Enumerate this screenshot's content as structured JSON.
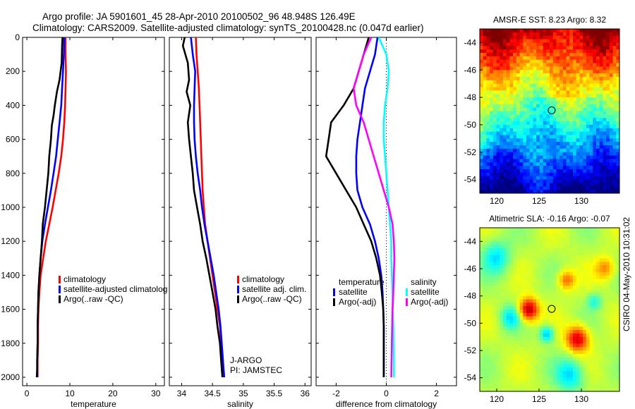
{
  "title_line1": "Argo profile: JA 5901601_45 28-Apr-2010 20100502_96 48.948S 126.49E",
  "title_line2": "Climatology: CARS2009. Satellite-adjusted climatology: synTS_20100428.nc (0.047d earlier)",
  "side_label": "CSIRO 04-May-2010 10:31:02",
  "colors": {
    "climatology": "#ff0000",
    "satellite": "#0000ff",
    "argo": "#000000",
    "salinity_satellite": "#00ffff",
    "salinity_argo": "#ff00ff"
  },
  "chart_data": [
    {
      "id": "temperature",
      "type": "line",
      "xlabel": "temperature",
      "xlim": [
        -1,
        32
      ],
      "xticks": [
        0,
        10,
        20,
        30
      ],
      "ylim": [
        2050,
        0
      ],
      "yticks": [
        0,
        200,
        400,
        600,
        800,
        1000,
        1200,
        1400,
        1600,
        1800,
        2000
      ],
      "legend": [
        "climatology",
        "satellite-adjusted climatolog",
        "Argo(..raw -QC)"
      ],
      "series": [
        {
          "name": "climatology",
          "color": "#ff0000",
          "x": [
            9.0,
            9.0,
            9.1,
            9.0,
            8.9,
            8.7,
            8.4,
            8.0,
            7.4,
            6.7,
            6.0,
            5.2,
            4.4,
            3.8,
            3.2,
            2.9,
            2.7,
            2.6,
            2.6,
            2.5,
            2.5
          ],
          "y": [
            0,
            100,
            200,
            300,
            400,
            500,
            600,
            700,
            800,
            900,
            1000,
            1100,
            1200,
            1300,
            1400,
            1500,
            1600,
            1700,
            1800,
            1900,
            2000
          ]
        },
        {
          "name": "satellite-adjusted climatolog",
          "color": "#0000ff",
          "x": [
            8.7,
            8.6,
            8.4,
            8.2,
            8.0,
            7.6,
            7.2,
            6.8,
            6.2,
            5.6,
            4.9,
            4.2,
            3.6,
            3.2,
            2.9,
            2.7,
            2.6,
            2.5,
            2.5,
            2.4,
            2.4
          ],
          "y": [
            0,
            100,
            200,
            300,
            400,
            500,
            600,
            700,
            800,
            900,
            1000,
            1100,
            1200,
            1300,
            1400,
            1500,
            1600,
            1700,
            1800,
            1900,
            2000
          ]
        },
        {
          "name": "Argo(..raw -QC)",
          "color": "#000000",
          "x": [
            8.3,
            8.2,
            8.1,
            7.6,
            7.0,
            6.5,
            6.2,
            5.8,
            5.6,
            5.2,
            5.0,
            4.6,
            4.2,
            3.7,
            3.5,
            3.2,
            2.9,
            2.7,
            2.6,
            2.5,
            2.5,
            2.4,
            2.4,
            2.3
          ],
          "y": [
            0,
            50,
            150,
            250,
            320,
            400,
            460,
            520,
            600,
            700,
            800,
            900,
            1000,
            1100,
            1200,
            1300,
            1400,
            1500,
            1600,
            1700,
            1800,
            1900,
            1950,
            2000
          ]
        }
      ]
    },
    {
      "id": "salinity",
      "type": "line",
      "xlabel": "salinity",
      "xlim": [
        33.8,
        36.1
      ],
      "xticks": [
        34,
        34.5,
        35,
        35.5,
        36
      ],
      "ylim": [
        2050,
        0
      ],
      "legend": [
        "climatology",
        "satellite adj. clim.",
        "Argo(..raw -QC)"
      ],
      "annotation": [
        "J-ARGO",
        "PI: JAMSTEC"
      ],
      "series": [
        {
          "name": "climatology",
          "color": "#ff0000",
          "x": [
            34.23,
            34.24,
            34.26,
            34.28,
            34.29,
            34.3,
            34.31,
            34.32,
            34.33,
            34.34,
            34.36,
            34.38,
            34.42,
            34.46,
            34.5,
            34.54,
            34.58,
            34.62,
            34.64,
            34.66,
            34.67
          ],
          "y": [
            0,
            100,
            200,
            300,
            400,
            500,
            600,
            700,
            800,
            900,
            1000,
            1100,
            1200,
            1300,
            1400,
            1500,
            1600,
            1700,
            1800,
            1900,
            2000
          ]
        },
        {
          "name": "satellite adj. clim.",
          "color": "#0000ff",
          "x": [
            34.15,
            34.18,
            34.22,
            34.21,
            34.2,
            34.2,
            34.21,
            34.23,
            34.26,
            34.3,
            34.33,
            34.37,
            34.42,
            34.47,
            34.52,
            34.56,
            34.6,
            34.63,
            34.65,
            34.67,
            34.69
          ],
          "y": [
            0,
            100,
            200,
            300,
            400,
            500,
            600,
            700,
            800,
            900,
            1000,
            1100,
            1200,
            1300,
            1400,
            1500,
            1600,
            1700,
            1800,
            1900,
            2000
          ]
        },
        {
          "name": "Argo(..raw -QC)",
          "color": "#000000",
          "x": [
            34.05,
            34.02,
            34.1,
            34.12,
            34.08,
            34.14,
            34.1,
            34.12,
            34.15,
            34.18,
            34.2,
            34.25,
            34.3,
            34.34,
            34.4,
            34.45,
            34.5,
            34.55,
            34.58,
            34.62,
            34.64,
            34.66
          ],
          "y": [
            0,
            50,
            150,
            250,
            320,
            400,
            500,
            600,
            700,
            800,
            900,
            1000,
            1100,
            1200,
            1300,
            1400,
            1500,
            1600,
            1700,
            1800,
            1900,
            2000
          ]
        }
      ]
    },
    {
      "id": "difference",
      "type": "line",
      "xlabel": "difference from climatology",
      "xlim": [
        -2.8,
        2.8
      ],
      "xticks": [
        -2,
        0,
        2
      ],
      "ylim": [
        2050,
        0
      ],
      "legend_left": {
        "title": "temperature",
        "items": [
          "satellite",
          "Argo(-adj)"
        ]
      },
      "legend_right": {
        "title": "salinity",
        "items": [
          "satellite",
          "Argo(-adj)"
        ]
      },
      "zero_line": 0,
      "series": [
        {
          "name": "temperature satellite",
          "color": "#0000ff",
          "x": [
            -0.35,
            -0.45,
            -0.65,
            -0.85,
            -0.95,
            -1.05,
            -1.15,
            -1.2,
            -1.2,
            -1.15,
            -0.95,
            -0.65,
            -0.45,
            -0.3,
            -0.2,
            -0.15,
            -0.12,
            -0.1,
            -0.1,
            -0.1,
            -0.1
          ],
          "y": [
            0,
            100,
            200,
            300,
            400,
            500,
            600,
            700,
            800,
            900,
            1000,
            1100,
            1200,
            1300,
            1400,
            1500,
            1600,
            1700,
            1800,
            1900,
            2000
          ]
        },
        {
          "name": "temperature Argo(-adj)",
          "color": "#000000",
          "x": [
            -0.7,
            -0.8,
            -1.0,
            -1.3,
            -1.7,
            -2.2,
            -2.3,
            -2.4,
            -2.0,
            -1.6,
            -1.2,
            -0.9,
            -0.6,
            -0.4,
            -0.25,
            -0.18,
            -0.12,
            -0.1,
            -0.1,
            -0.1
          ],
          "y": [
            0,
            50,
            150,
            300,
            400,
            500,
            600,
            700,
            800,
            900,
            1000,
            1100,
            1200,
            1300,
            1400,
            1500,
            1600,
            1700,
            1900,
            2000
          ]
        },
        {
          "name": "salinity satellite",
          "color": "#00ffff",
          "x": [
            -0.3,
            0.0,
            0.1,
            0.05,
            -0.05,
            -0.1,
            -0.1,
            -0.05,
            0.0,
            0.05,
            0.1,
            0.15,
            0.2,
            0.2,
            0.22,
            0.25,
            0.25,
            0.28,
            0.3,
            0.3
          ],
          "y": [
            0,
            100,
            200,
            300,
            400,
            500,
            600,
            700,
            800,
            900,
            1000,
            1100,
            1200,
            1300,
            1400,
            1500,
            1600,
            1700,
            1900,
            2000
          ]
        },
        {
          "name": "salinity Argo(-adj)",
          "color": "#ff00ff",
          "x": [
            -0.6,
            -0.9,
            -1.1,
            -1.3,
            -1.2,
            -0.9,
            -0.7,
            -0.5,
            -0.3,
            -0.1,
            0.1,
            0.25,
            0.3,
            0.32,
            0.3,
            0.28,
            0.25,
            0.22,
            0.2
          ],
          "y": [
            0,
            100,
            200,
            300,
            400,
            500,
            600,
            700,
            800,
            900,
            1000,
            1100,
            1200,
            1300,
            1400,
            1500,
            1600,
            1800,
            2000
          ]
        }
      ]
    },
    {
      "id": "sst_map",
      "type": "heatmap",
      "title": "AMSR-E SST: 8.23 Argo: 8.32",
      "xlim": [
        118,
        134.5
      ],
      "xticks": [
        120,
        125,
        130
      ],
      "ylim": [
        -55,
        -43
      ],
      "yticks": [
        -44,
        -46,
        -48,
        -50,
        -52,
        -54
      ],
      "marker": {
        "x": 126.49,
        "y": -48.948
      }
    },
    {
      "id": "sla_map",
      "type": "heatmap",
      "title": "Altimetric SLA: -0.16 Argo: -0.07",
      "xlim": [
        118,
        134.5
      ],
      "xticks": [
        120,
        125,
        130
      ],
      "ylim": [
        -55,
        -43
      ],
      "yticks": [
        -44,
        -46,
        -48,
        -50,
        -52,
        -54
      ],
      "marker": {
        "x": 126.49,
        "y": -48.948
      }
    }
  ]
}
